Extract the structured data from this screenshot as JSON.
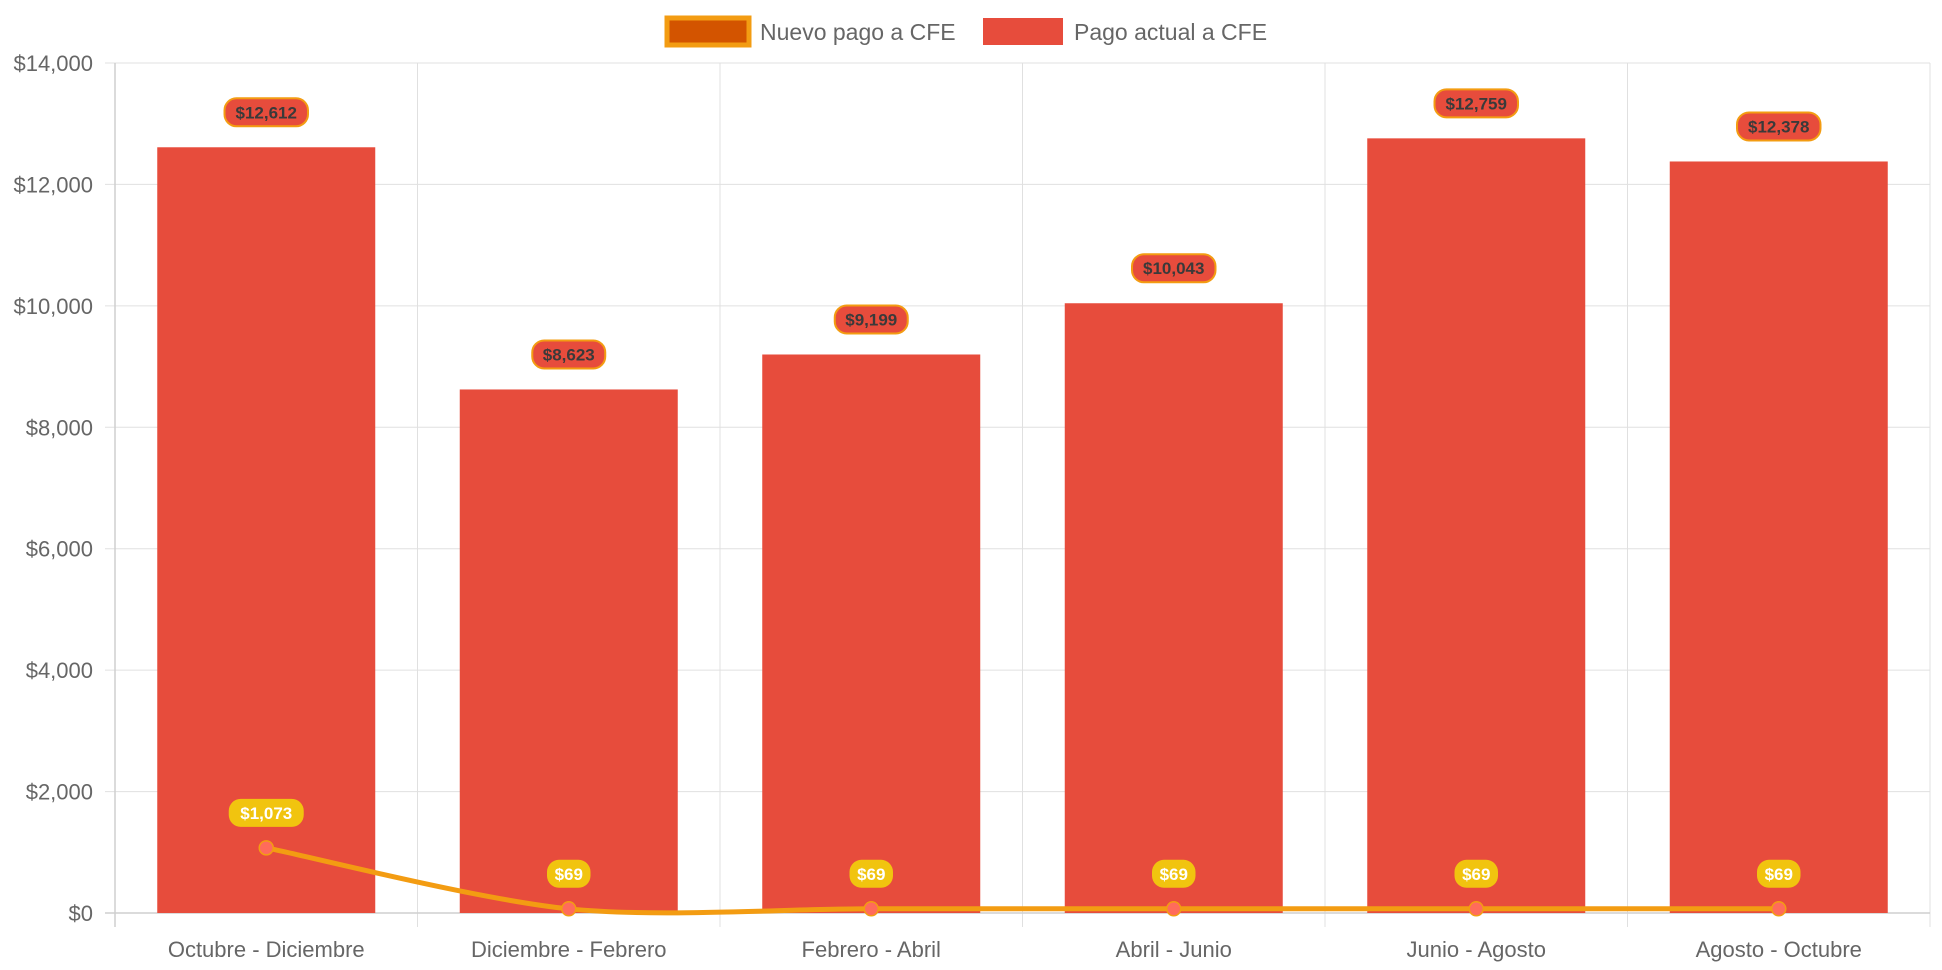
{
  "chart_data": {
    "type": "bar",
    "categories": [
      "Octubre - Diciembre",
      "Diciembre - Febrero",
      "Febrero - Abril",
      "Abril - Junio",
      "Junio - Agosto",
      "Agosto - Octubre"
    ],
    "series": [
      {
        "name": "Pago actual a CFE",
        "kind": "bar",
        "color": "#e74c3c",
        "values": [
          12612,
          8623,
          9199,
          10043,
          12759,
          12378
        ],
        "labels": [
          "$12,612",
          "$8,623",
          "$9,199",
          "$10,043",
          "$12,759",
          "$12,378"
        ]
      },
      {
        "name": "Nuevo pago a CFE",
        "kind": "line",
        "color": "#f39c12",
        "fill": "#d35400",
        "values": [
          1073,
          69,
          69,
          69,
          69,
          69
        ],
        "labels": [
          "$1,073",
          "$69",
          "$69",
          "$69",
          "$69",
          "$69"
        ]
      }
    ],
    "ylim": [
      0,
      14000
    ],
    "yticks": [
      "$14,000",
      "$12,000",
      "$10,000",
      "$8,000",
      "$6,000",
      "$4,000",
      "$2,000",
      "$0"
    ],
    "ytick_values": [
      14000,
      12000,
      10000,
      8000,
      6000,
      4000,
      2000,
      0
    ],
    "grid": true,
    "legend": "top-center",
    "colors": {
      "bar_label_fill": "#e74c3c",
      "bar_label_border": "#f39c12",
      "line_label_fill": "#f1c40f",
      "point_fill": "#ff6b5b",
      "grid": "#e0e0e0"
    }
  }
}
